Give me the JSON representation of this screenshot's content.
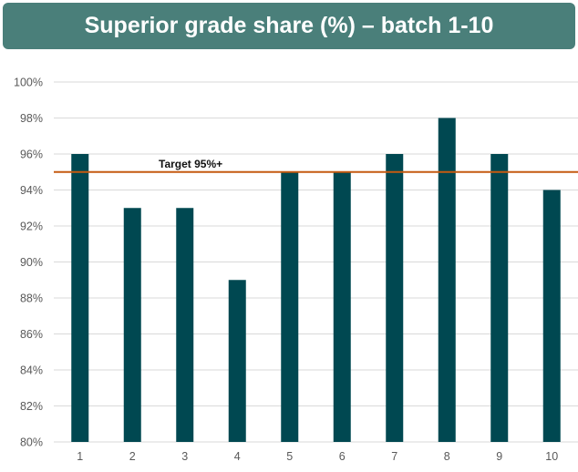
{
  "title": "Superior grade share (%) – batch 1-10",
  "chart_data": {
    "type": "bar",
    "categories": [
      "1",
      "2",
      "3",
      "4",
      "5",
      "6",
      "7",
      "8",
      "9",
      "10"
    ],
    "values": [
      96,
      93,
      93,
      89,
      95,
      95,
      96,
      98,
      96,
      94
    ],
    "ylim": [
      80,
      100
    ],
    "yticks": [
      80,
      82,
      84,
      86,
      88,
      90,
      92,
      94,
      96,
      98,
      100
    ],
    "ytick_labels": [
      "80%",
      "82%",
      "84%",
      "86%",
      "88%",
      "90%",
      "92%",
      "94%",
      "96%",
      "98%",
      "100%"
    ],
    "xlabel": "",
    "ylabel": "",
    "grid": true,
    "reference_line": {
      "value": 95,
      "label": "Target 95%+"
    },
    "colors": {
      "bar": "#004851",
      "target": "#c55a11",
      "grid": "#d9d9d9",
      "title_bg": "#4a7f7a"
    }
  }
}
